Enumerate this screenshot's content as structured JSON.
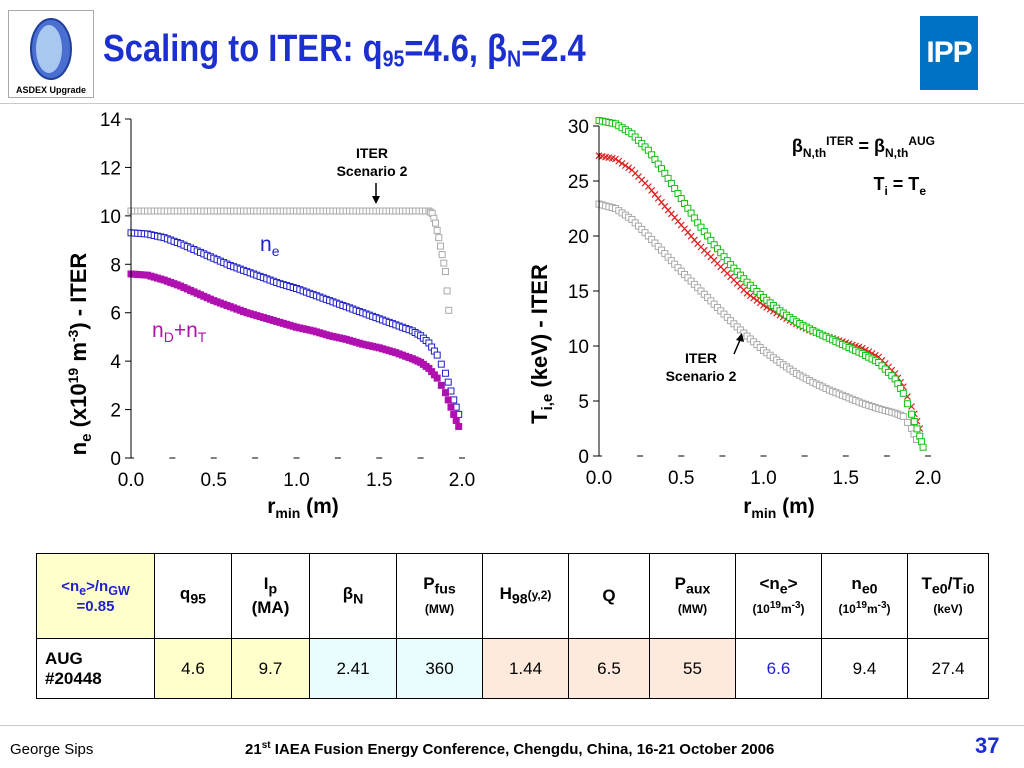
{
  "header": {
    "title_main": "Scaling to ITER: q",
    "title_sub_q": "95",
    "title_mid": "=4.6, ",
    "title_beta": "β",
    "title_sub_n": "N",
    "title_end": "=2.4",
    "left_logo_text": "ASDEX Upgrade",
    "right_logo_text": "IPP"
  },
  "chart_data": [
    {
      "type": "scatter",
      "ylabel_main": "n",
      "ylabel_sub": "e",
      "ylabel_rest": " (x10",
      "ylabel_sup": "19",
      "ylabel_unit": " m",
      "ylabel_sup2": "-3",
      "ylabel_end": ") - ITER",
      "xlabel_main": "r",
      "xlabel_sub": "min",
      "xlabel_end": " (m)",
      "xlim": [
        0,
        2.0
      ],
      "ylim": [
        0,
        14
      ],
      "xticks": [
        "0.0",
        "0.5",
        "1.0",
        "1.5",
        "2.0"
      ],
      "yticks": [
        "0",
        "2",
        "4",
        "6",
        "8",
        "10",
        "12",
        "14"
      ],
      "annotation": [
        "ITER",
        "Scenario 2"
      ],
      "labels": {
        "ne": [
          "n",
          "e"
        ],
        "nDT": [
          "n",
          "D",
          "+n",
          "T"
        ]
      },
      "series": [
        {
          "key": "iter",
          "color": "#a9a9a9",
          "marker": "square",
          "points": [
            [
              0,
              10.2
            ],
            [
              0.1,
              10.2
            ],
            [
              0.3,
              10.2
            ],
            [
              0.5,
              10.2
            ],
            [
              0.7,
              10.2
            ],
            [
              0.9,
              10.2
            ],
            [
              1.1,
              10.2
            ],
            [
              1.3,
              10.2
            ],
            [
              1.5,
              10.2
            ],
            [
              1.7,
              10.2
            ],
            [
              1.8,
              10.2
            ],
            [
              1.82,
              10.1
            ],
            [
              1.84,
              9.7
            ],
            [
              1.86,
              9.1
            ],
            [
              1.88,
              8.4
            ],
            [
              1.9,
              7.7
            ],
            [
              1.92,
              6.1
            ]
          ]
        },
        {
          "key": "ne",
          "color": "#2020c8",
          "marker": "square",
          "points": [
            [
              0,
              9.3
            ],
            [
              0.1,
              9.25
            ],
            [
              0.2,
              9.1
            ],
            [
              0.3,
              8.85
            ],
            [
              0.4,
              8.55
            ],
            [
              0.5,
              8.25
            ],
            [
              0.6,
              7.95
            ],
            [
              0.7,
              7.7
            ],
            [
              0.8,
              7.45
            ],
            [
              0.9,
              7.2
            ],
            [
              1.0,
              7.0
            ],
            [
              1.1,
              6.75
            ],
            [
              1.2,
              6.5
            ],
            [
              1.3,
              6.25
            ],
            [
              1.4,
              6.0
            ],
            [
              1.5,
              5.75
            ],
            [
              1.6,
              5.5
            ],
            [
              1.7,
              5.25
            ],
            [
              1.75,
              5.05
            ],
            [
              1.8,
              4.75
            ],
            [
              1.85,
              4.25
            ],
            [
              1.9,
              3.5
            ],
            [
              1.95,
              2.4
            ],
            [
              1.98,
              1.8
            ]
          ]
        },
        {
          "key": "nDT",
          "color": "#b010b0",
          "marker": "square",
          "points": [
            [
              0,
              7.6
            ],
            [
              0.1,
              7.55
            ],
            [
              0.2,
              7.35
            ],
            [
              0.3,
              7.1
            ],
            [
              0.4,
              6.8
            ],
            [
              0.5,
              6.5
            ],
            [
              0.6,
              6.25
            ],
            [
              0.7,
              6.0
            ],
            [
              0.8,
              5.8
            ],
            [
              0.9,
              5.6
            ],
            [
              1.0,
              5.4
            ],
            [
              1.1,
              5.25
            ],
            [
              1.2,
              5.05
            ],
            [
              1.3,
              4.9
            ],
            [
              1.4,
              4.7
            ],
            [
              1.5,
              4.55
            ],
            [
              1.6,
              4.35
            ],
            [
              1.7,
              4.1
            ],
            [
              1.75,
              3.95
            ],
            [
              1.8,
              3.7
            ],
            [
              1.85,
              3.3
            ],
            [
              1.9,
              2.7
            ],
            [
              1.95,
              1.8
            ],
            [
              1.98,
              1.3
            ]
          ]
        }
      ]
    },
    {
      "type": "scatter",
      "ylabel_main": "T",
      "ylabel_sub": "i,e",
      "ylabel_end": " (keV) - ITER",
      "xlabel_main": "r",
      "xlabel_sub": "min",
      "xlabel_end": " (m)",
      "xlim": [
        0,
        2.0
      ],
      "ylim": [
        0,
        30
      ],
      "xticks": [
        "0.0",
        "0.5",
        "1.0",
        "1.5",
        "2.0"
      ],
      "yticks": [
        "0",
        "5",
        "10",
        "15",
        "20",
        "25",
        "30"
      ],
      "annotation": [
        "ITER",
        "Scenario 2"
      ],
      "legend": {
        "line1": [
          "β",
          "N,th",
          "ITER",
          " = β",
          "N,th",
          "AUG"
        ],
        "line2": [
          "T",
          "i",
          " = T",
          "e"
        ]
      },
      "series": [
        {
          "key": "iter",
          "color": "#a9a9a9",
          "marker": "square",
          "points": [
            [
              0,
              22.9
            ],
            [
              0.1,
              22.5
            ],
            [
              0.2,
              21.5
            ],
            [
              0.3,
              20.0
            ],
            [
              0.4,
              18.4
            ],
            [
              0.5,
              16.8
            ],
            [
              0.6,
              15.3
            ],
            [
              0.7,
              13.8
            ],
            [
              0.8,
              12.3
            ],
            [
              0.9,
              10.9
            ],
            [
              1.0,
              9.6
            ],
            [
              1.1,
              8.5
            ],
            [
              1.2,
              7.5
            ],
            [
              1.3,
              6.7
            ],
            [
              1.4,
              6.0
            ],
            [
              1.5,
              5.4
            ],
            [
              1.6,
              4.8
            ],
            [
              1.7,
              4.3
            ],
            [
              1.8,
              3.9
            ],
            [
              1.85,
              3.6
            ],
            [
              1.9,
              2.5
            ],
            [
              1.93,
              1.5
            ]
          ]
        },
        {
          "key": "te",
          "color": "#e02020",
          "marker": "cross",
          "points": [
            [
              0,
              27.3
            ],
            [
              0.1,
              27.0
            ],
            [
              0.2,
              26.0
            ],
            [
              0.3,
              24.5
            ],
            [
              0.4,
              22.7
            ],
            [
              0.5,
              21.0
            ],
            [
              0.6,
              19.3
            ],
            [
              0.7,
              17.8
            ],
            [
              0.8,
              16.3
            ],
            [
              0.9,
              14.8
            ],
            [
              1.0,
              13.7
            ],
            [
              1.1,
              12.8
            ],
            [
              1.2,
              12.0
            ],
            [
              1.3,
              11.3
            ],
            [
              1.4,
              10.8
            ],
            [
              1.5,
              10.3
            ],
            [
              1.6,
              9.8
            ],
            [
              1.7,
              9.0
            ],
            [
              1.8,
              7.5
            ],
            [
              1.85,
              6.3
            ],
            [
              1.9,
              4.5
            ],
            [
              1.95,
              2.5
            ]
          ]
        },
        {
          "key": "ti",
          "color": "#10c010",
          "marker": "square",
          "points": [
            [
              0,
              30.5
            ],
            [
              0.1,
              30.2
            ],
            [
              0.2,
              29.3
            ],
            [
              0.3,
              27.8
            ],
            [
              0.4,
              25.7
            ],
            [
              0.5,
              23.4
            ],
            [
              0.6,
              21.2
            ],
            [
              0.7,
              19.2
            ],
            [
              0.8,
              17.4
            ],
            [
              0.9,
              15.8
            ],
            [
              1.0,
              14.4
            ],
            [
              1.1,
              13.2
            ],
            [
              1.2,
              12.2
            ],
            [
              1.3,
              11.4
            ],
            [
              1.4,
              10.7
            ],
            [
              1.5,
              10.0
            ],
            [
              1.6,
              9.3
            ],
            [
              1.7,
              8.5
            ],
            [
              1.8,
              7.0
            ],
            [
              1.85,
              5.7
            ],
            [
              1.9,
              3.8
            ],
            [
              1.95,
              1.8
            ],
            [
              1.97,
              0.8
            ]
          ]
        }
      ]
    },
    {
      "type": "table",
      "headers": {
        "ngw": [
          "<n",
          "e",
          ">/n",
          "GW",
          "=0.85"
        ],
        "q95": [
          "q",
          "95"
        ],
        "ip": [
          "I",
          "p",
          "(MA)"
        ],
        "betan": [
          "β",
          "N"
        ],
        "pfus": [
          "P",
          "fus",
          "(MW)"
        ],
        "h98": [
          "H",
          "98",
          "(y,2)"
        ],
        "q": "Q",
        "paux": [
          "P",
          "aux",
          "(MW)"
        ],
        "ne": [
          "<n",
          "e",
          ">",
          "(10",
          "19",
          "m",
          "-3",
          ")"
        ],
        "ne0": [
          "n",
          "e0",
          "(10",
          "19",
          "m",
          "-3",
          ")"
        ],
        "te0": [
          "T",
          "e0",
          "/T",
          "i0",
          "(keV)"
        ]
      },
      "row": {
        "label": [
          "AUG",
          "#20448"
        ],
        "values": [
          "4.6",
          "9.7",
          "2.41",
          "360",
          "1.44",
          "6.5",
          "55",
          "6.6",
          "9.4",
          "27.4"
        ]
      }
    }
  ],
  "footer": {
    "author": "George Sips",
    "conf_pre": "21",
    "conf_sup": "st",
    "conf_rest": " IAEA Fusion Energy Conference, Chengdu, China, 16-21 October 2006",
    "page": "37"
  }
}
